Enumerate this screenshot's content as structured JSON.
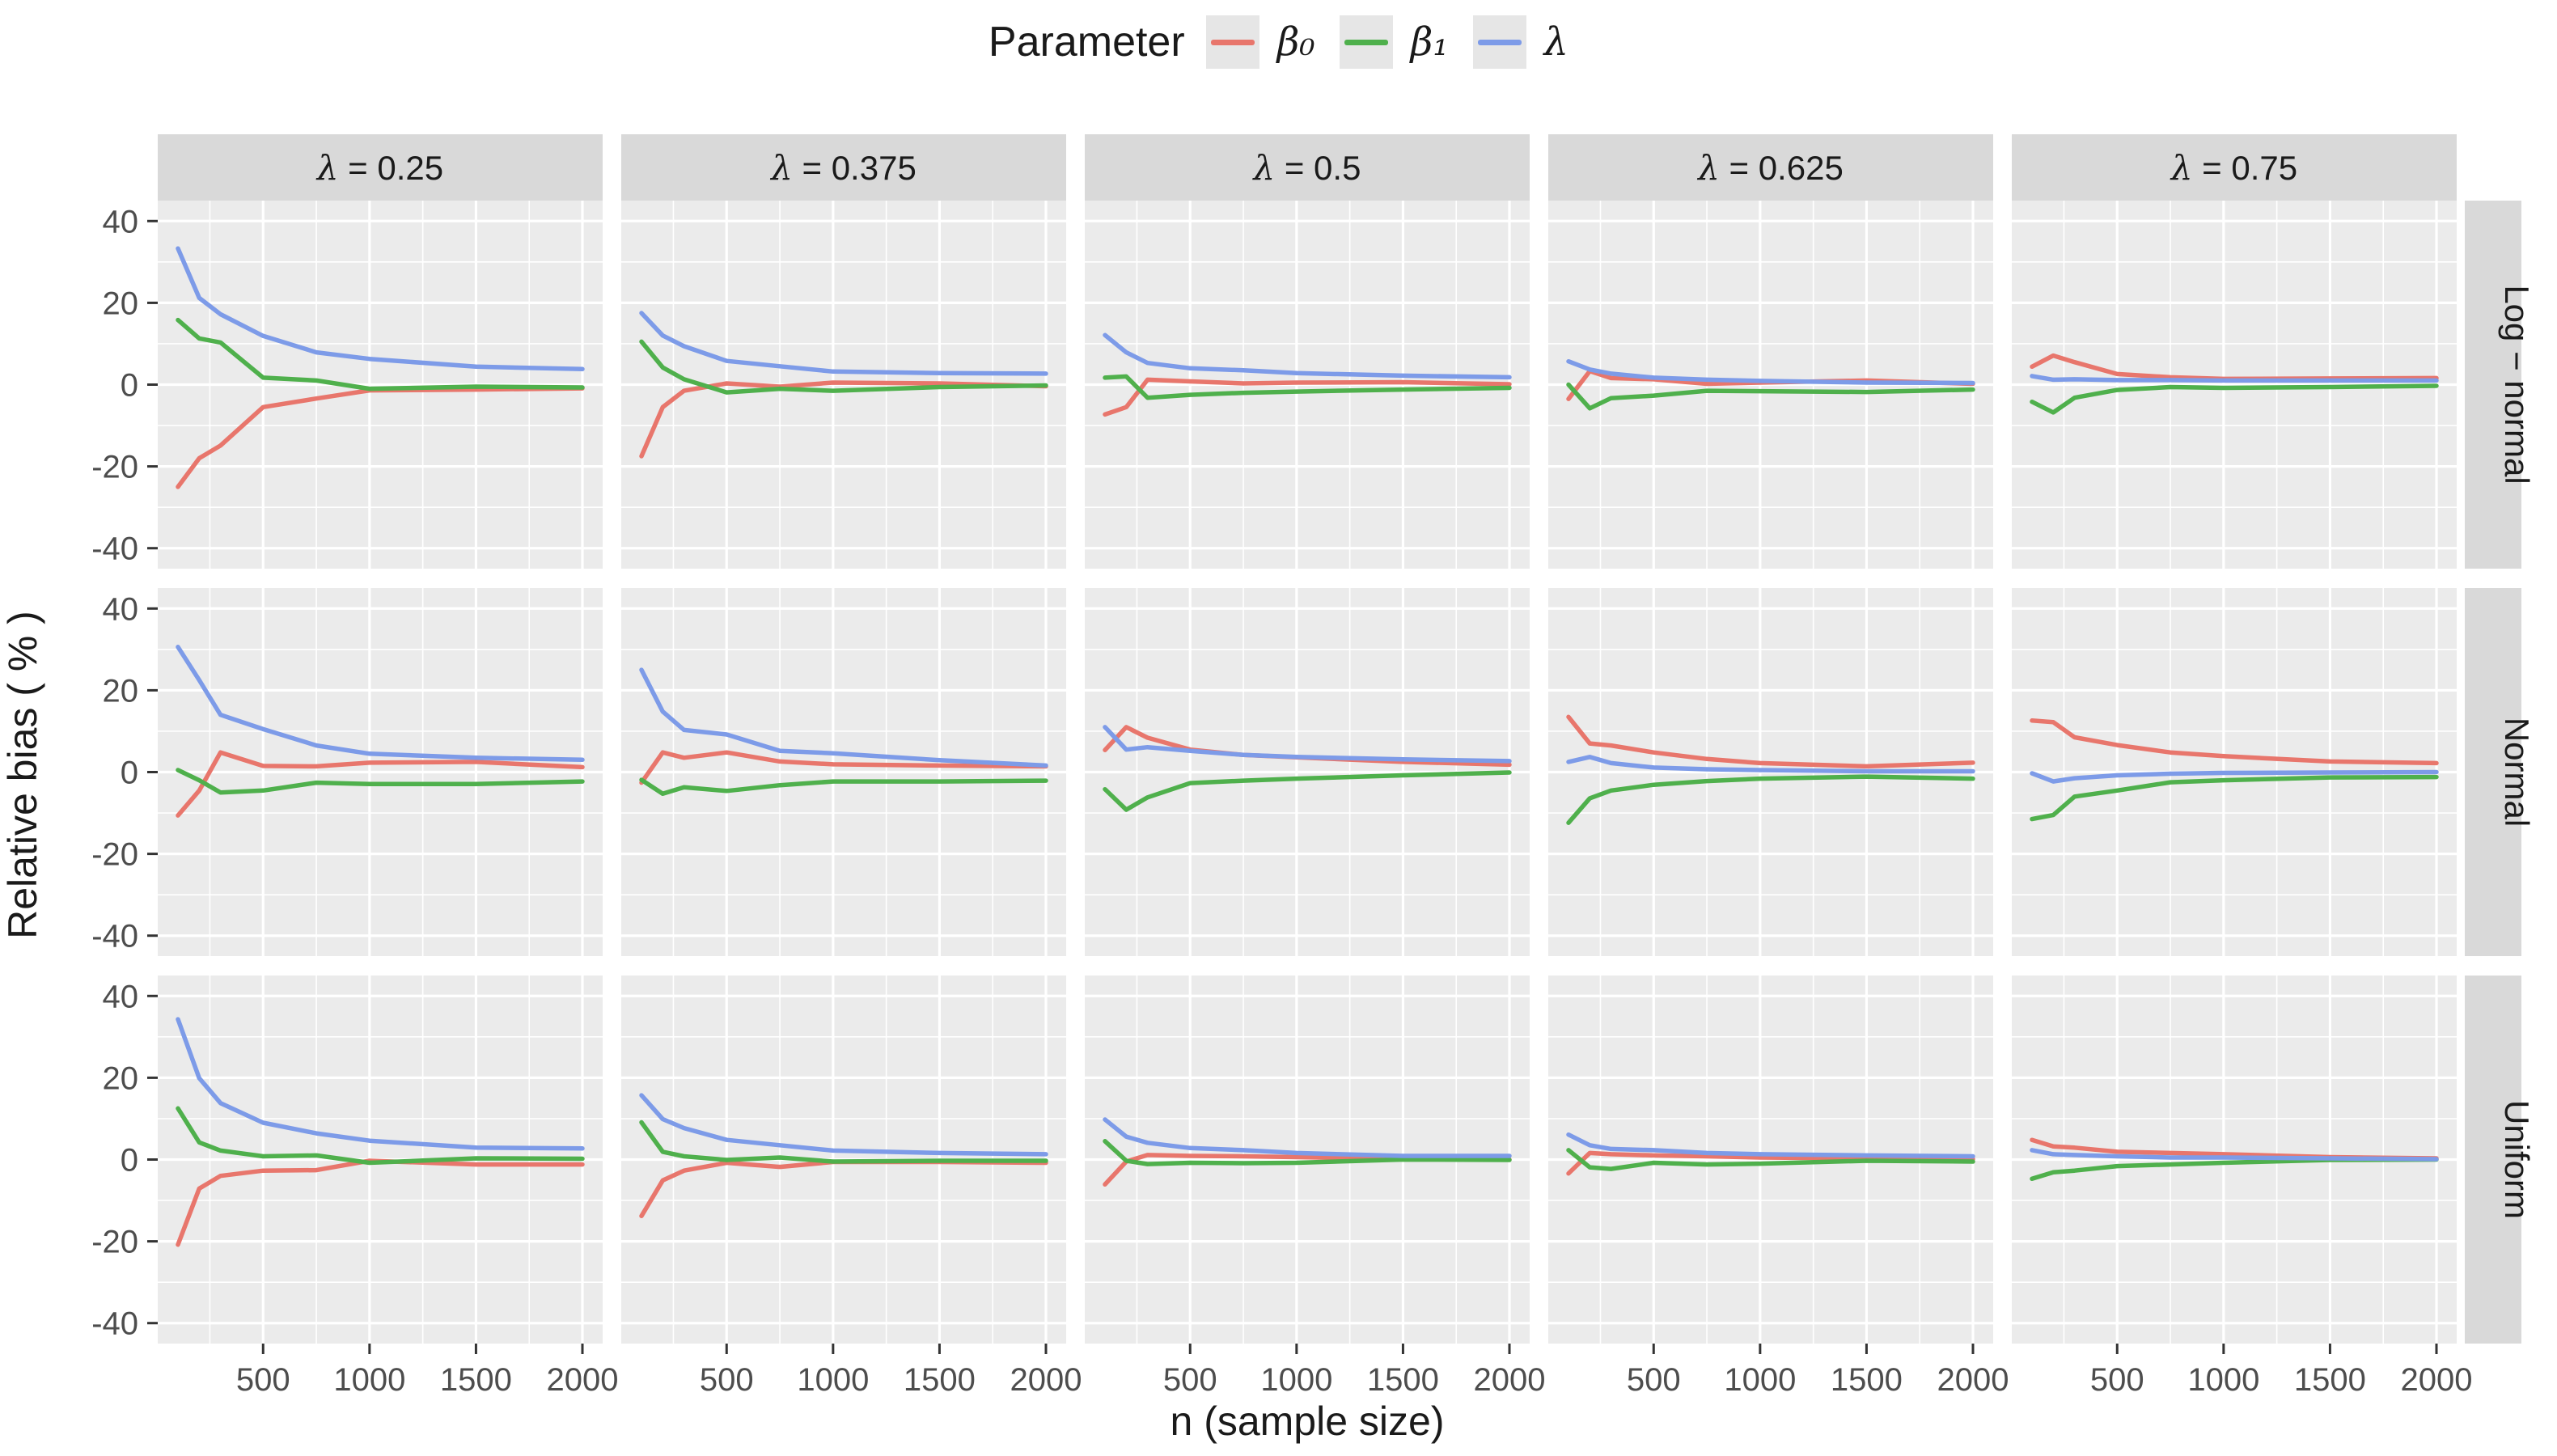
{
  "legend": {
    "title": "Parameter",
    "items": [
      {
        "label": "β₀",
        "color": "#E8766C"
      },
      {
        "label": "β₁",
        "color": "#4FB04C"
      },
      {
        "label": "λ",
        "color": "#7D9BE8"
      }
    ]
  },
  "style_colors": {
    "panel_background": "#EBEBEB",
    "strip_background": "#D9D9D9",
    "legend_key_background": "#E6E6E6",
    "gridline": "#FFFFFF",
    "tick_text": "#4D4D4D",
    "text": "#1A1A1A"
  },
  "chart_data": {
    "type": "line",
    "title": "",
    "xlabel": "n (sample size)",
    "ylabel": "Relative bias ( % )",
    "legend_position": "top",
    "grid": "white major+minor on gray panels",
    "x": [
      100,
      200,
      300,
      500,
      750,
      1000,
      1500,
      2000
    ],
    "x_ticks": [
      500,
      1000,
      1500,
      2000
    ],
    "x_minor": [
      250,
      750,
      1250,
      1750
    ],
    "y_ticks": [
      40,
      20,
      0,
      -20,
      -40
    ],
    "y_minor": [
      30,
      10,
      -10,
      -30
    ],
    "xlim": [
      5,
      2095
    ],
    "ylim": [
      -45,
      45
    ],
    "col_facets": [
      "λ = 0.25",
      "λ = 0.375",
      "λ = 0.5",
      "λ = 0.625",
      "λ = 0.75"
    ],
    "row_facets": [
      "Log − normal",
      "Normal",
      "Uniform"
    ],
    "series_names": [
      "β₀",
      "β₁",
      "λ"
    ],
    "panels": [
      {
        "row": "Log − normal",
        "col": "λ = 0.25",
        "series": [
          {
            "name": "β₀",
            "values": [
              -25.0,
              -18.0,
              -14.9,
              -5.5,
              -3.4,
              -1.4,
              -1.2,
              -0.9
            ]
          },
          {
            "name": "β₁",
            "values": [
              15.8,
              11.3,
              10.3,
              1.7,
              1.0,
              -1.0,
              -0.5,
              -0.7
            ]
          },
          {
            "name": "λ",
            "values": [
              33.3,
              21.2,
              17.2,
              11.9,
              7.9,
              6.3,
              4.4,
              3.8
            ]
          }
        ]
      },
      {
        "row": "Log − normal",
        "col": "λ = 0.375",
        "series": [
          {
            "name": "β₀",
            "values": [
              -17.5,
              -5.5,
              -1.5,
              0.3,
              -0.5,
              0.5,
              0.3,
              -0.4
            ]
          },
          {
            "name": "β₁",
            "values": [
              10.5,
              4.2,
              1.3,
              -1.9,
              -1.0,
              -1.5,
              -0.6,
              -0.2
            ]
          },
          {
            "name": "λ",
            "values": [
              17.5,
              12.0,
              9.4,
              5.8,
              4.5,
              3.2,
              2.8,
              2.7
            ]
          }
        ]
      },
      {
        "row": "Log − normal",
        "col": "λ = 0.5",
        "series": [
          {
            "name": "β₀",
            "values": [
              -7.3,
              -5.5,
              1.2,
              0.8,
              0.3,
              0.5,
              0.6,
              0.1
            ]
          },
          {
            "name": "β₁",
            "values": [
              1.7,
              2.0,
              -3.2,
              -2.5,
              -2.0,
              -1.7,
              -1.2,
              -0.8
            ]
          },
          {
            "name": "λ",
            "values": [
              12.1,
              7.9,
              5.3,
              4.0,
              3.5,
              2.8,
              2.2,
              1.8
            ]
          }
        ]
      },
      {
        "row": "Log − normal",
        "col": "λ = 0.625",
        "series": [
          {
            "name": "β₀",
            "values": [
              -3.5,
              3.3,
              1.6,
              1.3,
              0.2,
              0.5,
              1.0,
              0.2
            ]
          },
          {
            "name": "β₁",
            "values": [
              0.0,
              -5.8,
              -3.3,
              -2.7,
              -1.5,
              -1.6,
              -1.8,
              -1.2
            ]
          },
          {
            "name": "λ",
            "values": [
              5.7,
              3.7,
              2.7,
              1.7,
              1.2,
              0.9,
              0.5,
              0.4
            ]
          }
        ]
      },
      {
        "row": "Log − normal",
        "col": "λ = 0.75",
        "series": [
          {
            "name": "β₀",
            "values": [
              4.4,
              7.1,
              5.5,
              2.6,
              1.8,
              1.4,
              1.5,
              1.6
            ]
          },
          {
            "name": "β₁",
            "values": [
              -4.2,
              -6.8,
              -3.2,
              -1.3,
              -0.6,
              -0.8,
              -0.6,
              -0.3
            ]
          },
          {
            "name": "λ",
            "values": [
              2.1,
              1.2,
              1.3,
              1.1,
              1.1,
              1.0,
              1.0,
              1.0
            ]
          }
        ]
      },
      {
        "row": "Normal",
        "col": "λ = 0.25",
        "series": [
          {
            "name": "β₀",
            "values": [
              -10.6,
              -4.5,
              4.8,
              1.5,
              1.4,
              2.3,
              2.5,
              1.2
            ]
          },
          {
            "name": "β₁",
            "values": [
              0.5,
              -2.0,
              -5.0,
              -4.5,
              -2.6,
              -2.9,
              -2.9,
              -2.3
            ]
          },
          {
            "name": "λ",
            "values": [
              30.6,
              22.5,
              14.0,
              10.5,
              6.5,
              4.5,
              3.5,
              3.0
            ]
          }
        ]
      },
      {
        "row": "Normal",
        "col": "λ = 0.375",
        "series": [
          {
            "name": "β₀",
            "values": [
              -2.6,
              4.8,
              3.5,
              4.8,
              2.6,
              1.9,
              1.6,
              1.4
            ]
          },
          {
            "name": "β₁",
            "values": [
              -1.9,
              -5.3,
              -3.7,
              -4.6,
              -3.2,
              -2.3,
              -2.3,
              -2.1
            ]
          },
          {
            "name": "λ",
            "values": [
              25.0,
              14.8,
              10.3,
              9.2,
              5.2,
              4.6,
              2.9,
              1.6
            ]
          }
        ]
      },
      {
        "row": "Normal",
        "col": "λ = 0.5",
        "series": [
          {
            "name": "β₀",
            "values": [
              5.4,
              11.0,
              8.4,
              5.5,
              4.2,
              3.6,
              2.5,
              1.8
            ]
          },
          {
            "name": "β₁",
            "values": [
              -4.2,
              -9.2,
              -6.2,
              -2.7,
              -2.1,
              -1.6,
              -0.8,
              -0.1
            ]
          },
          {
            "name": "λ",
            "values": [
              11.0,
              5.5,
              6.1,
              5.2,
              4.2,
              3.7,
              3.1,
              2.7
            ]
          }
        ]
      },
      {
        "row": "Normal",
        "col": "λ = 0.625",
        "series": [
          {
            "name": "β₀",
            "values": [
              13.5,
              7.0,
              6.5,
              4.8,
              3.2,
              2.2,
              1.4,
              2.3
            ]
          },
          {
            "name": "β₁",
            "values": [
              -12.4,
              -6.4,
              -4.5,
              -3.1,
              -2.2,
              -1.6,
              -1.1,
              -1.6
            ]
          },
          {
            "name": "λ",
            "values": [
              2.5,
              3.7,
              2.2,
              1.1,
              0.7,
              0.5,
              0.2,
              0.2
            ]
          }
        ]
      },
      {
        "row": "Normal",
        "col": "λ = 0.75",
        "series": [
          {
            "name": "β₀",
            "values": [
              12.6,
              12.2,
              8.5,
              6.6,
              4.8,
              3.9,
              2.6,
              2.2
            ]
          },
          {
            "name": "β₁",
            "values": [
              -11.5,
              -10.5,
              -6.0,
              -4.5,
              -2.5,
              -2.0,
              -1.3,
              -1.2
            ]
          },
          {
            "name": "λ",
            "values": [
              -0.3,
              -2.3,
              -1.5,
              -0.8,
              -0.4,
              -0.2,
              -0.1,
              0.0
            ]
          }
        ]
      },
      {
        "row": "Uniform",
        "col": "λ = 0.25",
        "series": [
          {
            "name": "β₀",
            "values": [
              -20.8,
              -7.1,
              -4.0,
              -2.7,
              -2.6,
              -0.3,
              -1.2,
              -1.2
            ]
          },
          {
            "name": "β₁",
            "values": [
              12.5,
              4.2,
              2.2,
              0.8,
              1.0,
              -0.8,
              0.3,
              0.2
            ]
          },
          {
            "name": "λ",
            "values": [
              34.3,
              19.9,
              13.8,
              9.0,
              6.4,
              4.6,
              2.9,
              2.7
            ]
          }
        ]
      },
      {
        "row": "Uniform",
        "col": "λ = 0.375",
        "series": [
          {
            "name": "β₀",
            "values": [
              -13.8,
              -5.1,
              -2.7,
              -0.8,
              -1.8,
              -0.6,
              -0.6,
              -0.8
            ]
          },
          {
            "name": "β₁",
            "values": [
              9.1,
              1.9,
              0.8,
              -0.1,
              0.5,
              -0.5,
              -0.3,
              -0.3
            ]
          },
          {
            "name": "λ",
            "values": [
              15.7,
              9.9,
              7.7,
              4.8,
              3.5,
              2.2,
              1.6,
              1.3
            ]
          }
        ]
      },
      {
        "row": "Uniform",
        "col": "λ = 0.5",
        "series": [
          {
            "name": "β₀",
            "values": [
              -6.1,
              -0.5,
              1.1,
              0.9,
              0.8,
              0.6,
              0.1,
              0.0
            ]
          },
          {
            "name": "β₁",
            "values": [
              4.5,
              -0.3,
              -1.1,
              -0.8,
              -0.9,
              -0.8,
              0.0,
              -0.1
            ]
          },
          {
            "name": "λ",
            "values": [
              9.8,
              5.6,
              4.1,
              2.8,
              2.3,
              1.6,
              0.9,
              0.9
            ]
          }
        ]
      },
      {
        "row": "Uniform",
        "col": "λ = 0.625",
        "series": [
          {
            "name": "β₀",
            "values": [
              -3.4,
              1.6,
              1.3,
              1.0,
              0.8,
              0.5,
              0.3,
              0.1
            ]
          },
          {
            "name": "β₁",
            "values": [
              2.3,
              -1.9,
              -2.3,
              -0.8,
              -1.2,
              -1.0,
              -0.3,
              -0.5
            ]
          },
          {
            "name": "λ",
            "values": [
              6.1,
              3.5,
              2.6,
              2.3,
              1.6,
              1.3,
              1.0,
              0.8
            ]
          }
        ]
      },
      {
        "row": "Uniform",
        "col": "λ = 0.75",
        "series": [
          {
            "name": "β₀",
            "values": [
              4.8,
              3.2,
              2.9,
              1.9,
              1.6,
              1.3,
              0.6,
              0.3
            ]
          },
          {
            "name": "β₁",
            "values": [
              -4.7,
              -3.1,
              -2.7,
              -1.6,
              -1.2,
              -0.8,
              -0.1,
              0.0
            ]
          },
          {
            "name": "λ",
            "values": [
              2.3,
              1.3,
              1.1,
              0.8,
              0.5,
              0.5,
              0.3,
              0.1
            ]
          }
        ]
      }
    ]
  }
}
